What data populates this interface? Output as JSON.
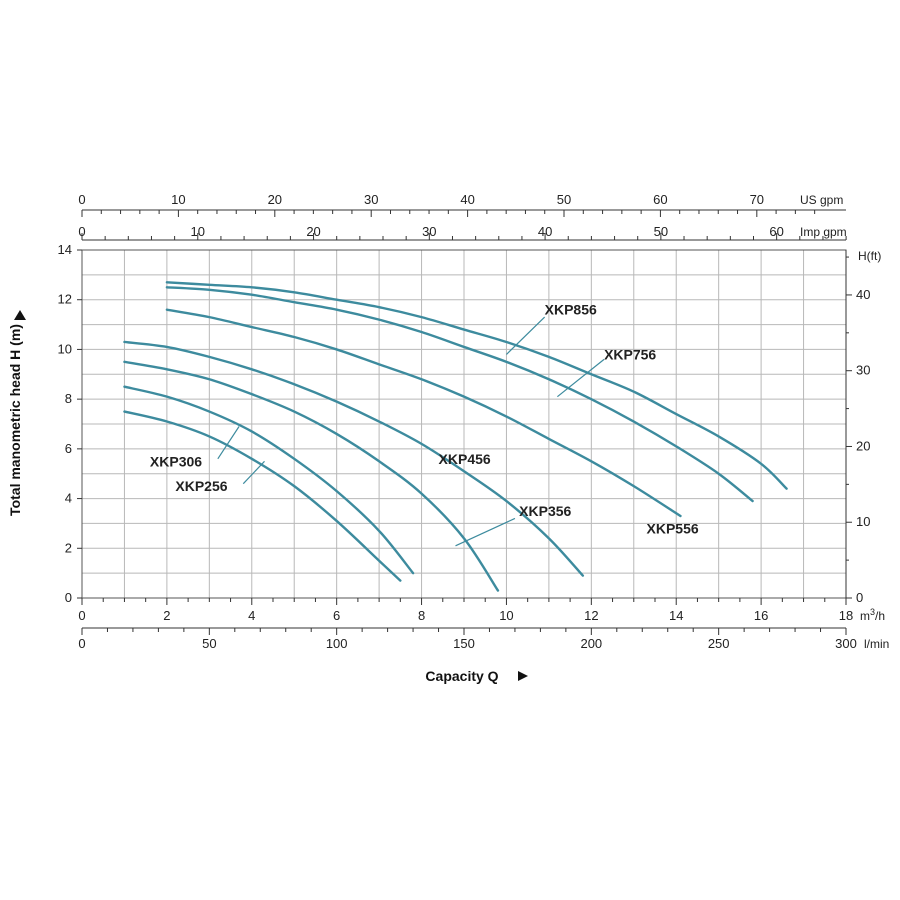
{
  "chart_data": {
    "type": "line",
    "ylabel": "Total manometric head H (m)",
    "xlabel": "Capacity Q",
    "x_unit": "m³/h",
    "xlim": [
      0,
      18
    ],
    "ylim": [
      0,
      14
    ],
    "x_ticks": [
      0,
      2,
      4,
      6,
      8,
      10,
      12,
      14,
      16,
      18
    ],
    "y_ticks": [
      0,
      2,
      4,
      6,
      8,
      10,
      12,
      14
    ],
    "grid": true,
    "secondary_axes": {
      "lmin": {
        "unit": "l/min",
        "ticks": [
          0,
          50,
          100,
          150,
          200,
          250,
          300
        ]
      },
      "us_gpm": {
        "unit": "US gpm",
        "ticks": [
          0,
          10,
          20,
          30,
          40,
          50,
          60,
          70
        ]
      },
      "imp_gpm": {
        "unit": "Imp gpm",
        "ticks": [
          0,
          10,
          20,
          30,
          40,
          50,
          60
        ]
      },
      "h_ft": {
        "unit": "H(ft)",
        "ticks": [
          0,
          10,
          20,
          30,
          40
        ]
      }
    },
    "series": [
      {
        "name": "XKP256",
        "x": [
          1,
          2,
          3,
          4,
          5,
          6,
          7,
          7.5
        ],
        "y": [
          7.5,
          7.1,
          6.5,
          5.6,
          4.5,
          3.1,
          1.5,
          0.7
        ]
      },
      {
        "name": "XKP306",
        "x": [
          1,
          2,
          3,
          4,
          5,
          6,
          7,
          7.8
        ],
        "y": [
          8.5,
          8.1,
          7.5,
          6.7,
          5.6,
          4.3,
          2.7,
          1.0
        ]
      },
      {
        "name": "XKP356",
        "x": [
          1,
          2,
          3,
          4,
          5,
          6,
          7,
          8,
          9,
          9.8
        ],
        "y": [
          9.5,
          9.2,
          8.8,
          8.2,
          7.5,
          6.6,
          5.5,
          4.2,
          2.4,
          0.3
        ]
      },
      {
        "name": "XKP456",
        "x": [
          1,
          2,
          3,
          4,
          5,
          6,
          7,
          8,
          9,
          10,
          11,
          11.8
        ],
        "y": [
          10.3,
          10.1,
          9.7,
          9.2,
          8.6,
          7.9,
          7.1,
          6.2,
          5.1,
          3.9,
          2.4,
          0.9
        ]
      },
      {
        "name": "XKP556",
        "x": [
          2,
          3,
          4,
          5,
          6,
          7,
          8,
          9,
          10,
          11,
          12,
          13,
          14.1
        ],
        "y": [
          11.6,
          11.3,
          10.9,
          10.5,
          10.0,
          9.4,
          8.8,
          8.1,
          7.3,
          6.4,
          5.5,
          4.5,
          3.3
        ]
      },
      {
        "name": "XKP756",
        "x": [
          2,
          3,
          4,
          5,
          6,
          7,
          8,
          9,
          10,
          11,
          12,
          13,
          14,
          15,
          15.8
        ],
        "y": [
          12.5,
          12.4,
          12.2,
          11.9,
          11.6,
          11.2,
          10.7,
          10.1,
          9.5,
          8.8,
          8.0,
          7.1,
          6.1,
          5.0,
          3.9
        ]
      },
      {
        "name": "XKP856",
        "x": [
          2,
          3,
          4,
          5,
          6,
          7,
          8,
          9,
          10,
          11,
          12,
          13,
          14,
          15,
          16,
          16.6
        ],
        "y": [
          12.7,
          12.6,
          12.5,
          12.3,
          12.0,
          11.7,
          11.3,
          10.8,
          10.3,
          9.7,
          9.0,
          8.3,
          7.4,
          6.5,
          5.4,
          4.4
        ]
      }
    ]
  }
}
